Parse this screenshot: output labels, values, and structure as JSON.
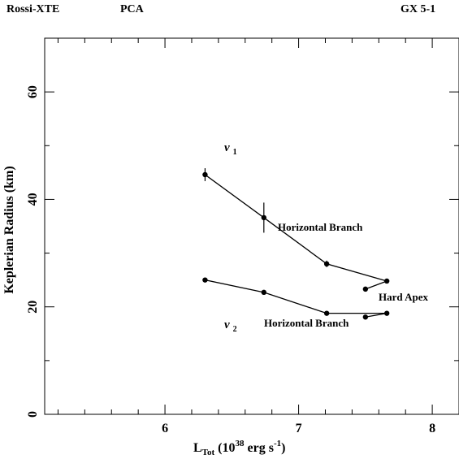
{
  "header": {
    "left": "Rossi-XTE",
    "middle": "PCA",
    "right": "GX 5-1"
  },
  "chart_data": {
    "type": "scatter",
    "title": "",
    "xlabel_main": "L",
    "xlabel_sub": "Tot",
    "xlabel_open": " (10",
    "xlabel_exp": "38",
    "xlabel_unit": " erg s",
    "xlabel_unit_exp": "-1",
    "xlabel_close": ")",
    "ylabel": "Keplerian Radius (km)",
    "xlim": [
      5.1,
      8.2
    ],
    "ylim": [
      0,
      70
    ],
    "x_ticks": [
      {
        "value": 6,
        "label": "6"
      },
      {
        "value": 7,
        "label": "7"
      },
      {
        "value": 8,
        "label": "8"
      }
    ],
    "y_ticks": [
      {
        "value": 0,
        "label": "0"
      },
      {
        "value": 20,
        "label": "20"
      },
      {
        "value": 40,
        "label": "40"
      },
      {
        "value": 60,
        "label": "60"
      }
    ],
    "series": [
      {
        "name": "ν1",
        "label_main": "ν",
        "label_sub": "1",
        "points": [
          {
            "x": 6.3,
            "y": 44.6,
            "err": 1.2
          },
          {
            "x": 6.74,
            "y": 36.6,
            "err": 2.8
          },
          {
            "x": 7.21,
            "y": 28.0,
            "err": 0.6
          },
          {
            "x": 7.66,
            "y": 24.8,
            "err": 0.4
          }
        ],
        "extra_points": [
          {
            "x": 7.5,
            "y": 23.3
          }
        ],
        "annotation": "Horizontal Branch"
      },
      {
        "name": "ν2",
        "label_main": "ν",
        "label_sub": "2",
        "points": [
          {
            "x": 6.3,
            "y": 25.0,
            "err": 0.3
          },
          {
            "x": 6.74,
            "y": 22.7,
            "err": 0.3
          },
          {
            "x": 7.21,
            "y": 18.8,
            "err": 0.3
          },
          {
            "x": 7.66,
            "y": 18.8,
            "err": 0.3
          }
        ],
        "extra_points": [
          {
            "x": 7.5,
            "y": 18.1
          }
        ],
        "annotation": "Horizontal Branch"
      }
    ],
    "annotations": [
      "Hard Apex"
    ]
  }
}
